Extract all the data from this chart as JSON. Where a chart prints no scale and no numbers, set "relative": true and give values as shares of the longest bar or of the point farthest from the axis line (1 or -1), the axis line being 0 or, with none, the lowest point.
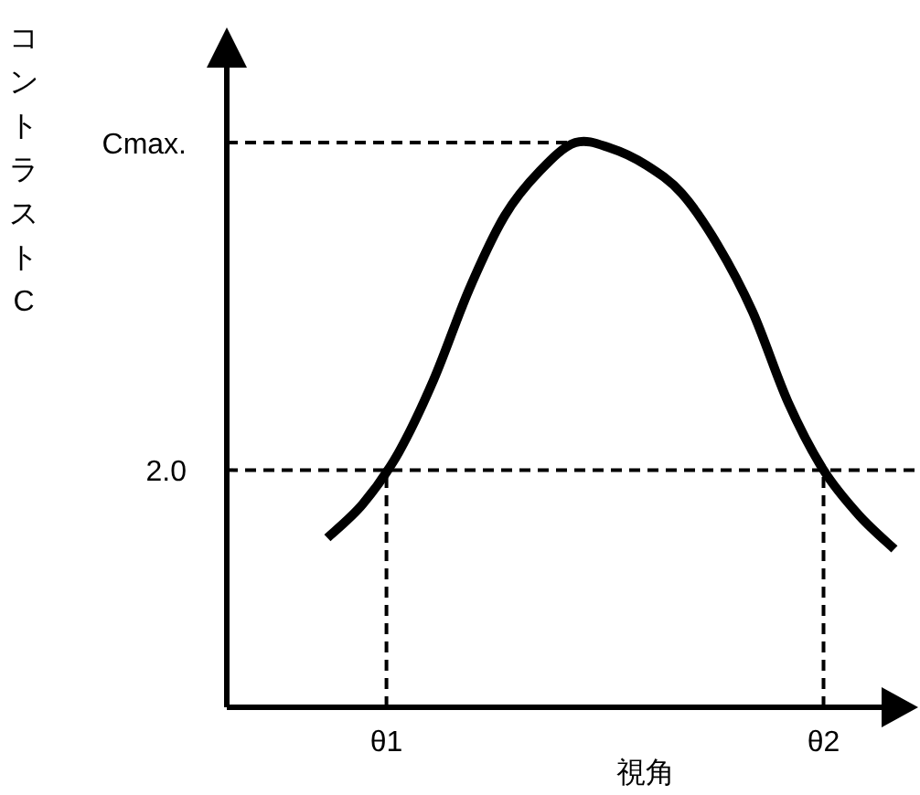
{
  "chart_data": {
    "type": "line",
    "relative": true,
    "xlabel": "視角",
    "categories": [
      null,
      null,
      null,
      null,
      null,
      null,
      null,
      null,
      null,
      null,
      null,
      null,
      null,
      null,
      null,
      null,
      null
    ],
    "series": [
      {
        "color": "#000000",
        "values": [
          0.3,
          0.36,
          0.45,
          0.58,
          0.74,
          0.87,
          0.95,
          1.0,
          0.99,
          0.96,
          0.91,
          0.82,
          0.7,
          0.54,
          0.42,
          0.34,
          0.28
        ]
      }
    ],
    "ref_lines": [
      {
        "axis": "y",
        "value": 1.0,
        "line_style": "dashed"
      },
      {
        "axis": "y",
        "value": 0.42,
        "line_style": "dashed"
      }
    ],
    "annotations": [
      "Cmax.",
      "2.0",
      "θ1",
      "θ2",
      "コントラストC"
    ],
    "marker": "none",
    "line_style": "solid"
  }
}
